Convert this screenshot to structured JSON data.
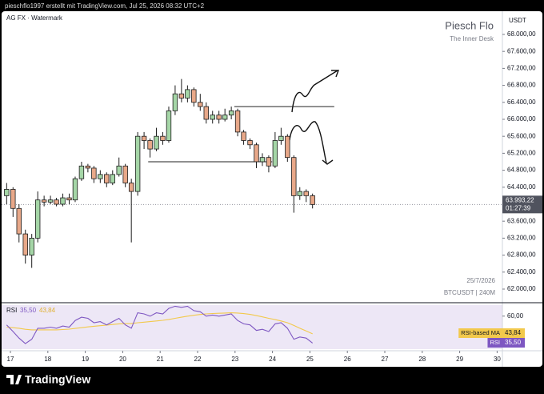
{
  "header": "pieschflo1997 erstellt mit TradingView.com, Jul 25, 2026 08:32 UTC+2",
  "logo": "TradingView",
  "chart_data": [
    {
      "type": "candlestick",
      "title": "AG FX · Watermark",
      "watermark_title": "Piesch Flo",
      "watermark_subtitle": "The Inner Desk",
      "currency": "USDT",
      "date_stamp": "25/7/2026",
      "symbol": "BTCUSDT | 240M",
      "countdown": "01:27:39",
      "up_color": "#a5d6a7",
      "down_color": "#e8a889",
      "x": [
        16.9,
        17.07,
        17.23,
        17.4,
        17.57,
        17.73,
        17.9,
        18.07,
        18.23,
        18.4,
        18.57,
        18.73,
        18.9,
        19.07,
        19.23,
        19.4,
        19.57,
        19.73,
        19.9,
        20.07,
        20.23,
        20.4,
        20.57,
        20.73,
        20.9,
        21.07,
        21.23,
        21.4,
        21.57,
        21.73,
        21.9,
        22.07,
        22.23,
        22.4,
        22.57,
        22.73,
        22.9,
        23.07,
        23.23,
        23.4,
        23.57,
        23.73,
        23.9,
        24.07,
        24.23,
        24.4,
        24.57,
        24.73,
        24.9,
        25.07
      ],
      "open": [
        64200,
        64350,
        63900,
        63300,
        62800,
        63200,
        64100,
        64050,
        64100,
        64000,
        64150,
        64100,
        64600,
        64900,
        64850,
        64600,
        64700,
        64500,
        64700,
        64900,
        64500,
        64300,
        65600,
        65500,
        65300,
        65600,
        65500,
        66200,
        66600,
        66500,
        66700,
        66400,
        66300,
        66000,
        66100,
        66000,
        66100,
        66200,
        65700,
        65500,
        65400,
        65000,
        65100,
        64900,
        65500,
        65600,
        65100,
        64200,
        64300,
        64200
      ],
      "high": [
        64500,
        64400,
        64000,
        63400,
        63300,
        64300,
        64200,
        64200,
        64150,
        64250,
        64250,
        64650,
        65000,
        64950,
        64900,
        64800,
        64750,
        64800,
        65100,
        64950,
        64600,
        65700,
        65700,
        65550,
        65800,
        65700,
        66300,
        66800,
        66950,
        66800,
        66750,
        66600,
        66400,
        66200,
        66200,
        66250,
        66300,
        66250,
        65750,
        65550,
        65450,
        65200,
        65150,
        65700,
        65800,
        65650,
        65150,
        64400,
        64350,
        64250
      ],
      "low": [
        64000,
        63700,
        63100,
        62600,
        62500,
        63100,
        63950,
        64000,
        63950,
        63950,
        64000,
        64050,
        64550,
        64750,
        64500,
        64500,
        64400,
        64450,
        64650,
        64400,
        63100,
        64200,
        65300,
        65100,
        65250,
        65400,
        65450,
        66100,
        66400,
        66400,
        66300,
        66200,
        65900,
        65900,
        65900,
        65950,
        66000,
        65600,
        65400,
        65300,
        64850,
        64900,
        64750,
        64850,
        65400,
        65000,
        63800,
        64100,
        64050,
        63900
      ],
      "close": [
        64350,
        63900,
        63300,
        62800,
        63200,
        64100,
        64050,
        64100,
        64000,
        64150,
        64100,
        64600,
        64900,
        64850,
        64600,
        64700,
        64500,
        64700,
        64900,
        64500,
        64300,
        65600,
        65500,
        65300,
        65600,
        65500,
        66200,
        66600,
        66500,
        66700,
        66400,
        66300,
        66000,
        66100,
        66000,
        66100,
        66200,
        65700,
        65500,
        65400,
        65000,
        65100,
        64900,
        65500,
        65600,
        65100,
        64200,
        64300,
        64200,
        63993.22
      ],
      "value_labels": [
        null,
        null,
        null,
        null,
        null,
        null,
        null,
        null,
        null,
        null,
        null,
        null,
        null,
        null,
        null,
        null,
        null,
        null,
        null,
        null,
        null,
        null,
        null,
        null,
        null,
        null,
        null,
        null,
        null,
        null,
        null,
        null,
        null,
        null,
        null,
        null,
        null,
        null,
        null,
        null,
        null,
        null,
        null,
        null,
        null,
        null,
        null,
        null,
        null,
        "63.993,22"
      ],
      "levels": [
        {
          "value": 66300,
          "x": [
            22.98,
            25.65
          ]
        },
        {
          "value": 65000,
          "x": [
            20.68,
            23.99
          ]
        }
      ],
      "xlim": [
        16.722,
        30.141
      ],
      "xticks": [
        17,
        18,
        19,
        20,
        21,
        22,
        23,
        24,
        25,
        26,
        27,
        28,
        29,
        30
      ],
      "ylim": [
        61679,
        68547
      ],
      "yticks": [
        {
          "value": 62000,
          "label": "62.000,00"
        },
        {
          "value": 62400,
          "label": "62.400,00"
        },
        {
          "value": 62800,
          "label": "62.800,00"
        },
        {
          "value": 63200,
          "label": "63.200,00"
        },
        {
          "value": 63600,
          "label": "63.600,00"
        },
        {
          "value": 64400,
          "label": "64.400,00"
        },
        {
          "value": 64800,
          "label": "64.800,00"
        },
        {
          "value": 65200,
          "label": "65.200,00"
        },
        {
          "value": 65600,
          "label": "65.600,00"
        },
        {
          "value": 66000,
          "label": "66.000,00"
        },
        {
          "value": 66400,
          "label": "66.400,00"
        },
        {
          "value": 66800,
          "label": "66.800,00"
        },
        {
          "value": 67200,
          "label": "67.200,00"
        },
        {
          "value": 67600,
          "label": "67.600,00"
        },
        {
          "value": 68000,
          "label": "68.000,00"
        }
      ]
    },
    {
      "type": "line",
      "title": "RSI",
      "x": [
        16.9,
        17.07,
        17.23,
        17.4,
        17.57,
        17.73,
        17.9,
        18.07,
        18.23,
        18.4,
        18.57,
        18.73,
        18.9,
        19.07,
        19.23,
        19.4,
        19.57,
        19.73,
        19.9,
        20.07,
        20.23,
        20.4,
        20.57,
        20.73,
        20.9,
        21.07,
        21.23,
        21.4,
        21.57,
        21.73,
        21.9,
        22.07,
        22.23,
        22.4,
        22.57,
        22.73,
        22.9,
        23.07,
        23.23,
        23.4,
        23.57,
        23.73,
        23.9,
        24.07,
        24.23,
        24.4,
        24.57,
        24.73,
        24.9,
        25.07
      ],
      "series": [
        {
          "name": "RSI-based MA",
          "color": "#f2c94c",
          "values": [
            50,
            49.5,
            49,
            48,
            47.5,
            47.5,
            47.5,
            47.5,
            47.5,
            47.8,
            48.2,
            48.8,
            49.5,
            50.2,
            50.8,
            51.3,
            51.8,
            52.4,
            53,
            53.2,
            53.2,
            54,
            54.5,
            55,
            55.6,
            56.2,
            57,
            58,
            59,
            60,
            60.8,
            61.5,
            62,
            62.4,
            62.6,
            62.8,
            63,
            62.8,
            62.3,
            61.6,
            60.5,
            59.3,
            58,
            56.8,
            55.6,
            54,
            51.5,
            49,
            46.5,
            43.84
          ],
          "value_labels": [
            null,
            null,
            null,
            null,
            null,
            null,
            null,
            null,
            null,
            null,
            null,
            null,
            null,
            null,
            null,
            null,
            null,
            null,
            null,
            null,
            null,
            null,
            null,
            null,
            null,
            null,
            null,
            null,
            null,
            null,
            null,
            null,
            null,
            null,
            null,
            null,
            null,
            null,
            null,
            null,
            null,
            null,
            null,
            null,
            null,
            null,
            null,
            null,
            null,
            "43,84"
          ]
        },
        {
          "name": "RSI",
          "color": "#7e57c2",
          "values": [
            52,
            46,
            40,
            35,
            39,
            49,
            49,
            50,
            49,
            51,
            50,
            56,
            59,
            58,
            54,
            55,
            52,
            55,
            58,
            52,
            49,
            63,
            62,
            60,
            63,
            62,
            67,
            69,
            68,
            69,
            65,
            64,
            60,
            61,
            60,
            61,
            62,
            56,
            53,
            52,
            47,
            48,
            46,
            53,
            54,
            49,
            39,
            41,
            40,
            35.5
          ],
          "value_labels": [
            null,
            null,
            null,
            null,
            null,
            null,
            null,
            null,
            null,
            null,
            null,
            null,
            null,
            null,
            null,
            null,
            null,
            null,
            null,
            null,
            null,
            null,
            null,
            null,
            null,
            null,
            null,
            null,
            null,
            null,
            null,
            null,
            null,
            null,
            null,
            null,
            null,
            null,
            null,
            null,
            null,
            null,
            null,
            null,
            null,
            null,
            null,
            null,
            null,
            "35,50"
          ]
        }
      ],
      "xlim": [
        16.722,
        30.141
      ],
      "ylim": [
        28.5,
        72.2
      ],
      "yticks": [
        {
          "value": 60,
          "label": "60,00"
        }
      ]
    }
  ]
}
